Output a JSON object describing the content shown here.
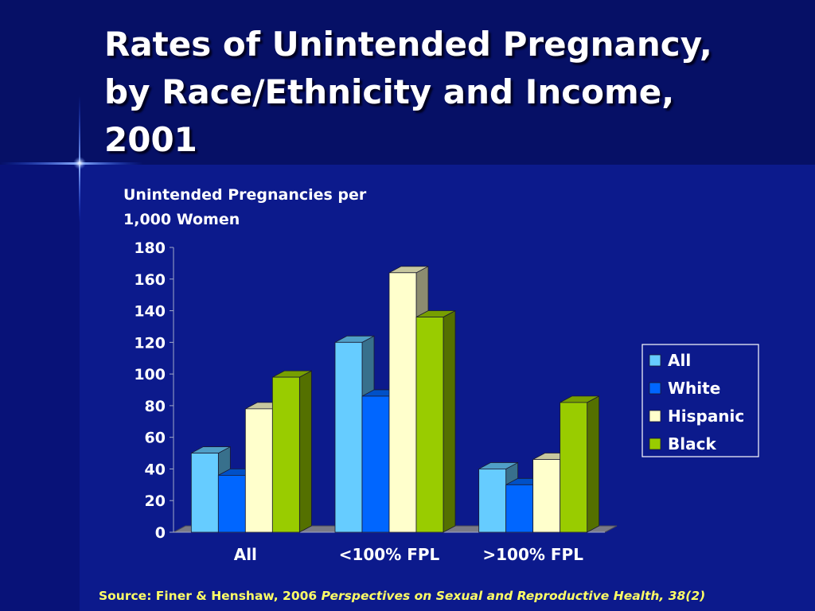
{
  "slide": {
    "title_lines": [
      "Rates of Unintended Pregnancy,",
      "by Race/Ethnicity and Income,",
      "2001"
    ],
    "source_plain": "Source: Finer & Henshaw, 2006 ",
    "source_italic": "Perspectives on Sexual and Reproductive Health, 38(2)"
  },
  "colors": {
    "background": "#0c1a8c",
    "banner": "#061066",
    "title_text": "#ffffff",
    "source_text": "#ffff66"
  },
  "chart_data": {
    "type": "bar",
    "title": "",
    "ylabel": "Unintended Pregnancies per 1,000 Women",
    "ylabel_lines": [
      "Unintended Pregnancies per",
      "1,000 Women"
    ],
    "xlabel": "",
    "categories": [
      "All",
      "<100% FPL",
      ">100% FPL"
    ],
    "ylim": [
      0,
      180
    ],
    "yticks": [
      0,
      20,
      40,
      60,
      80,
      100,
      120,
      140,
      160,
      180
    ],
    "grid": false,
    "legend_position": "right",
    "series": [
      {
        "name": "All",
        "color": "#66ccff",
        "values": [
          50,
          120,
          40
        ]
      },
      {
        "name": "White",
        "color": "#0066ff",
        "values": [
          36,
          86,
          30
        ]
      },
      {
        "name": "Hispanic",
        "color": "#ffffcc",
        "values": [
          78,
          164,
          46
        ]
      },
      {
        "name": "Black",
        "color": "#99cc00",
        "values": [
          98,
          136,
          82
        ]
      }
    ]
  }
}
